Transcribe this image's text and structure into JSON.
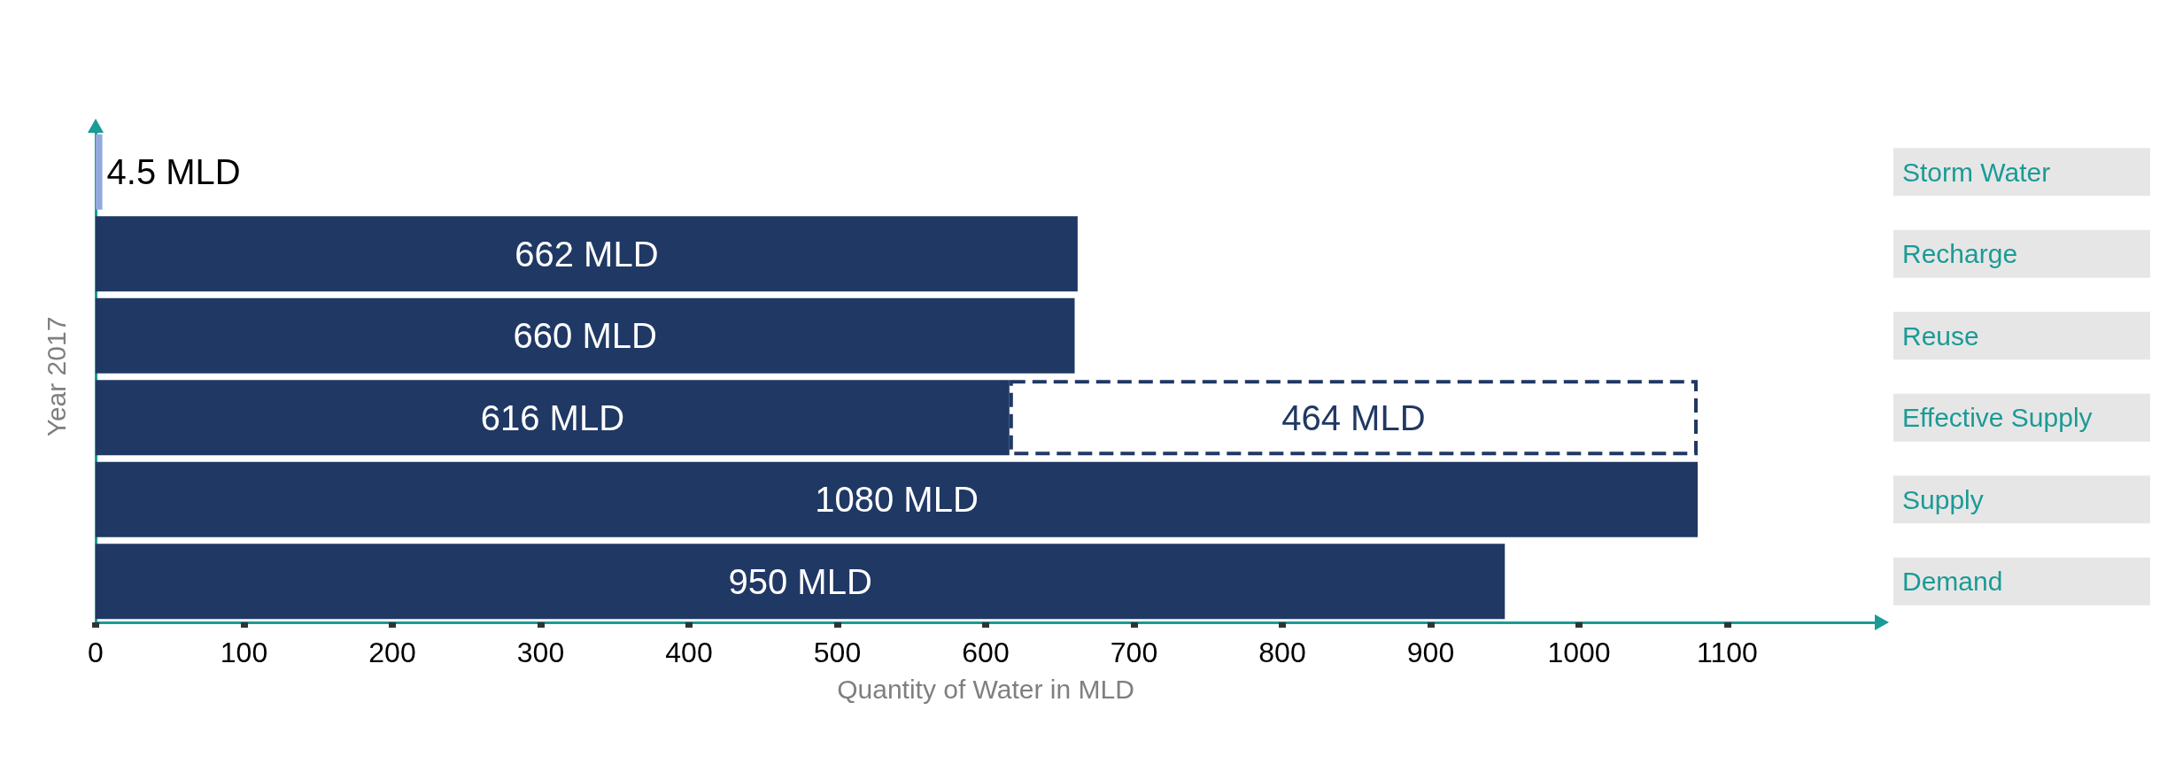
{
  "chart_data": {
    "type": "bar",
    "orientation": "horizontal",
    "stacked": true,
    "categories": [
      "Storm Water",
      "Recharge",
      "Reuse",
      "Effective Supply",
      "Supply",
      "Demand"
    ],
    "series": [
      {
        "colors": [
          "#8faadc",
          "#203864",
          "#203864",
          "#203864",
          "#203864",
          "#203864"
        ],
        "values": [
          4.5,
          662,
          660,
          616,
          1080,
          950
        ],
        "value_labels": [
          "4.5 MLD",
          "662 MLD",
          "660 MLD",
          "616 MLD",
          "1080 MLD",
          "950 MLD"
        ]
      },
      {
        "color": "#203864",
        "line_style": "dashed",
        "values": [
          null,
          null,
          null,
          464,
          null,
          null
        ],
        "value_labels": [
          null,
          null,
          null,
          "464 MLD",
          null,
          null
        ]
      }
    ],
    "xlim": [
      0,
      1200
    ],
    "xticks": [
      0,
      100,
      200,
      300,
      400,
      500,
      600,
      700,
      800,
      900,
      1000,
      1100
    ],
    "xlabel": "Quantity of Water in MLD",
    "ylabel": "Year 2017",
    "grid": false
  }
}
